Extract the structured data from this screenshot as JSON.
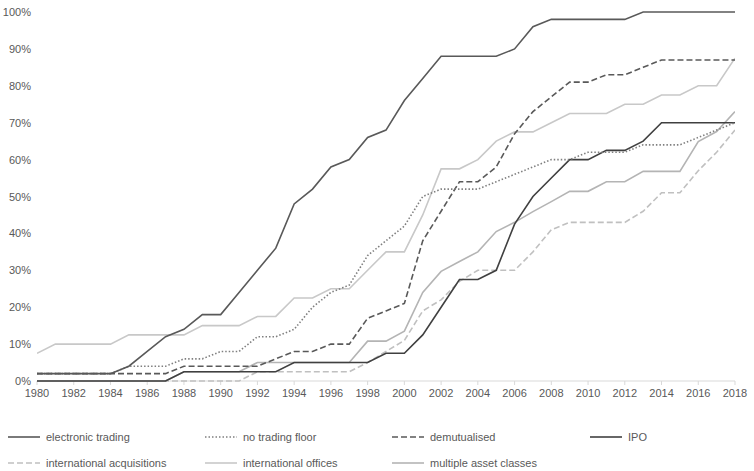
{
  "chart_data": {
    "type": "line",
    "x": [
      1980,
      1981,
      1982,
      1983,
      1984,
      1985,
      1986,
      1987,
      1988,
      1989,
      1990,
      1991,
      1992,
      1993,
      1994,
      1995,
      1996,
      1997,
      1998,
      1999,
      2000,
      2001,
      2002,
      2003,
      2004,
      2005,
      2006,
      2007,
      2008,
      2009,
      2010,
      2011,
      2012,
      2013,
      2014,
      2015,
      2016,
      2017,
      2018
    ],
    "xlim": [
      1980,
      2018
    ],
    "xticks": [
      1980,
      1982,
      1984,
      1986,
      1988,
      1990,
      1992,
      1994,
      1996,
      1998,
      2000,
      2002,
      2004,
      2006,
      2008,
      2010,
      2012,
      2014,
      2016,
      2018
    ],
    "ylim": [
      0,
      100
    ],
    "yticks": [
      {
        "value": 0,
        "label": "0%"
      },
      {
        "value": 10,
        "label": "10%"
      },
      {
        "value": 20,
        "label": "20%"
      },
      {
        "value": 30,
        "label": "30%"
      },
      {
        "value": 40,
        "label": "40%"
      },
      {
        "value": 50,
        "label": "50%"
      },
      {
        "value": 60,
        "label": "60%"
      },
      {
        "value": 70,
        "label": "70%"
      },
      {
        "value": 80,
        "label": "80%"
      },
      {
        "value": 90,
        "label": "90%"
      },
      {
        "value": 100,
        "label": "100%"
      }
    ],
    "grid": false,
    "legend": "bottom",
    "series": [
      {
        "name": "electronic trading",
        "color": "#595959",
        "line_style": "solid",
        "values": [
          2,
          2,
          2,
          2,
          2,
          4,
          8,
          12,
          14,
          18,
          18,
          24,
          30,
          36,
          48,
          52,
          58,
          60,
          66,
          68,
          76,
          82,
          88,
          88,
          88,
          88,
          90,
          96,
          98,
          98,
          98,
          98,
          98,
          100,
          100,
          100,
          100,
          100,
          100
        ]
      },
      {
        "name": "no trading floor",
        "color": "#7f7f7f",
        "line_style": "dotted",
        "values": [
          2,
          2,
          2,
          2,
          2,
          4,
          4,
          4,
          6,
          6,
          8,
          8,
          12,
          12,
          14,
          20,
          24,
          26,
          34,
          38,
          42,
          50,
          52,
          52,
          52,
          54,
          56,
          58,
          60,
          60,
          62,
          62,
          62,
          64,
          64,
          64,
          66,
          68,
          70
        ]
      },
      {
        "name": "demutualised",
        "color": "#595959",
        "line_style": "dashed",
        "values": [
          2,
          2,
          2,
          2,
          2,
          2,
          2,
          2,
          4,
          4,
          4,
          4,
          4,
          6,
          8,
          8,
          10,
          10,
          17,
          19,
          21,
          38,
          46,
          54,
          54,
          58,
          67,
          73,
          77,
          81,
          81,
          83,
          83,
          85,
          87,
          87,
          87,
          87,
          87
        ]
      },
      {
        "name": "IPO",
        "color": "#404040",
        "line_style": "solid",
        "values": [
          0,
          0,
          0,
          0,
          0,
          0,
          0,
          0,
          2.5,
          2.5,
          2.5,
          2.5,
          2.5,
          2.5,
          5,
          5,
          5,
          5,
          5,
          7.5,
          7.5,
          12.5,
          20,
          27.5,
          27.5,
          30,
          42.5,
          50,
          55,
          60,
          60,
          62.5,
          62.5,
          65,
          70,
          70,
          70,
          70,
          70
        ]
      },
      {
        "name": "international acquisitions",
        "color": "#c0c0c0",
        "line_style": "dashed",
        "values": [
          0,
          0,
          0,
          0,
          0,
          0,
          0,
          0,
          0,
          0,
          0,
          0,
          2.5,
          2.5,
          2.5,
          2.5,
          2.5,
          2.5,
          5,
          8,
          11,
          19,
          22,
          27,
          30,
          30,
          30,
          35,
          41,
          43,
          43,
          43,
          43,
          46,
          51,
          51,
          57,
          62,
          68
        ]
      },
      {
        "name": "international offices",
        "color": "#c8c8c8",
        "line_style": "solid",
        "values": [
          7.5,
          10,
          10,
          10,
          10,
          12.5,
          12.5,
          12.5,
          12.5,
          15,
          15,
          15,
          17.5,
          17.5,
          22.5,
          22.5,
          25,
          25,
          30,
          35,
          35,
          45,
          57.5,
          57.5,
          60,
          65,
          67.5,
          67.5,
          70,
          72.5,
          72.5,
          72.5,
          75,
          75,
          77.5,
          77.5,
          80,
          80,
          87.5
        ]
      },
      {
        "name": "multiple asset classes",
        "color": "#b4b4b4",
        "line_style": "solid",
        "values": [
          0,
          0,
          0,
          0,
          0,
          0,
          0,
          0,
          2.5,
          2.5,
          2.5,
          2.5,
          5,
          5,
          5,
          5,
          5,
          5,
          10.8,
          10.8,
          13.5,
          24,
          29.7,
          32.4,
          35,
          40.5,
          43,
          45.9,
          48.6,
          51.4,
          51.4,
          54,
          54,
          56.8,
          56.8,
          56.8,
          64.9,
          67.6,
          73
        ]
      }
    ]
  }
}
